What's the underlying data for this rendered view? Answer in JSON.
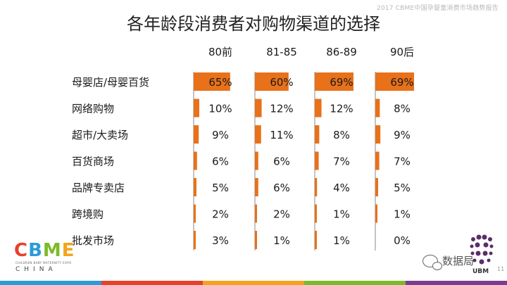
{
  "header_note": "2017 CBME中国孕婴童消费市场趋势报告",
  "title": "各年龄段消费者对购物渠道的选择",
  "chart_data": {
    "type": "bar",
    "title": "各年龄段消费者对购物渠道的选择",
    "orientation": "horizontal",
    "unit": "%",
    "max": 69,
    "categories": [
      "母婴店/母婴百货",
      "网络购物",
      "超市/大卖场",
      "百货商场",
      "品牌专卖店",
      "跨境购",
      "批发市场"
    ],
    "series": [
      {
        "name": "80前",
        "values": [
          65,
          10,
          9,
          6,
          5,
          2,
          3
        ]
      },
      {
        "name": "81-85",
        "values": [
          60,
          12,
          11,
          6,
          6,
          2,
          1
        ]
      },
      {
        "name": "86-89",
        "values": [
          69,
          12,
          8,
          7,
          4,
          1,
          1
        ]
      },
      {
        "name": "90后",
        "values": [
          69,
          8,
          9,
          7,
          5,
          1,
          0
        ]
      }
    ],
    "bar_color": "#E8711A",
    "axis_color": "#8a8a8a"
  },
  "logo": {
    "main": "CBME",
    "sub": "CHILDREN BABY MATERNITY EXPO",
    "country": "CHINA",
    "colors": [
      "#E8402A",
      "#2B9BD7",
      "#7DBA29",
      "#F2A51C"
    ]
  },
  "watermark": "数据局",
  "ubm": "UBM",
  "page_number": "11",
  "footer_colors": [
    "#2B9BD7",
    "#E8402A",
    "#F2A51C",
    "#7DBA29",
    "#7C3C8F"
  ]
}
